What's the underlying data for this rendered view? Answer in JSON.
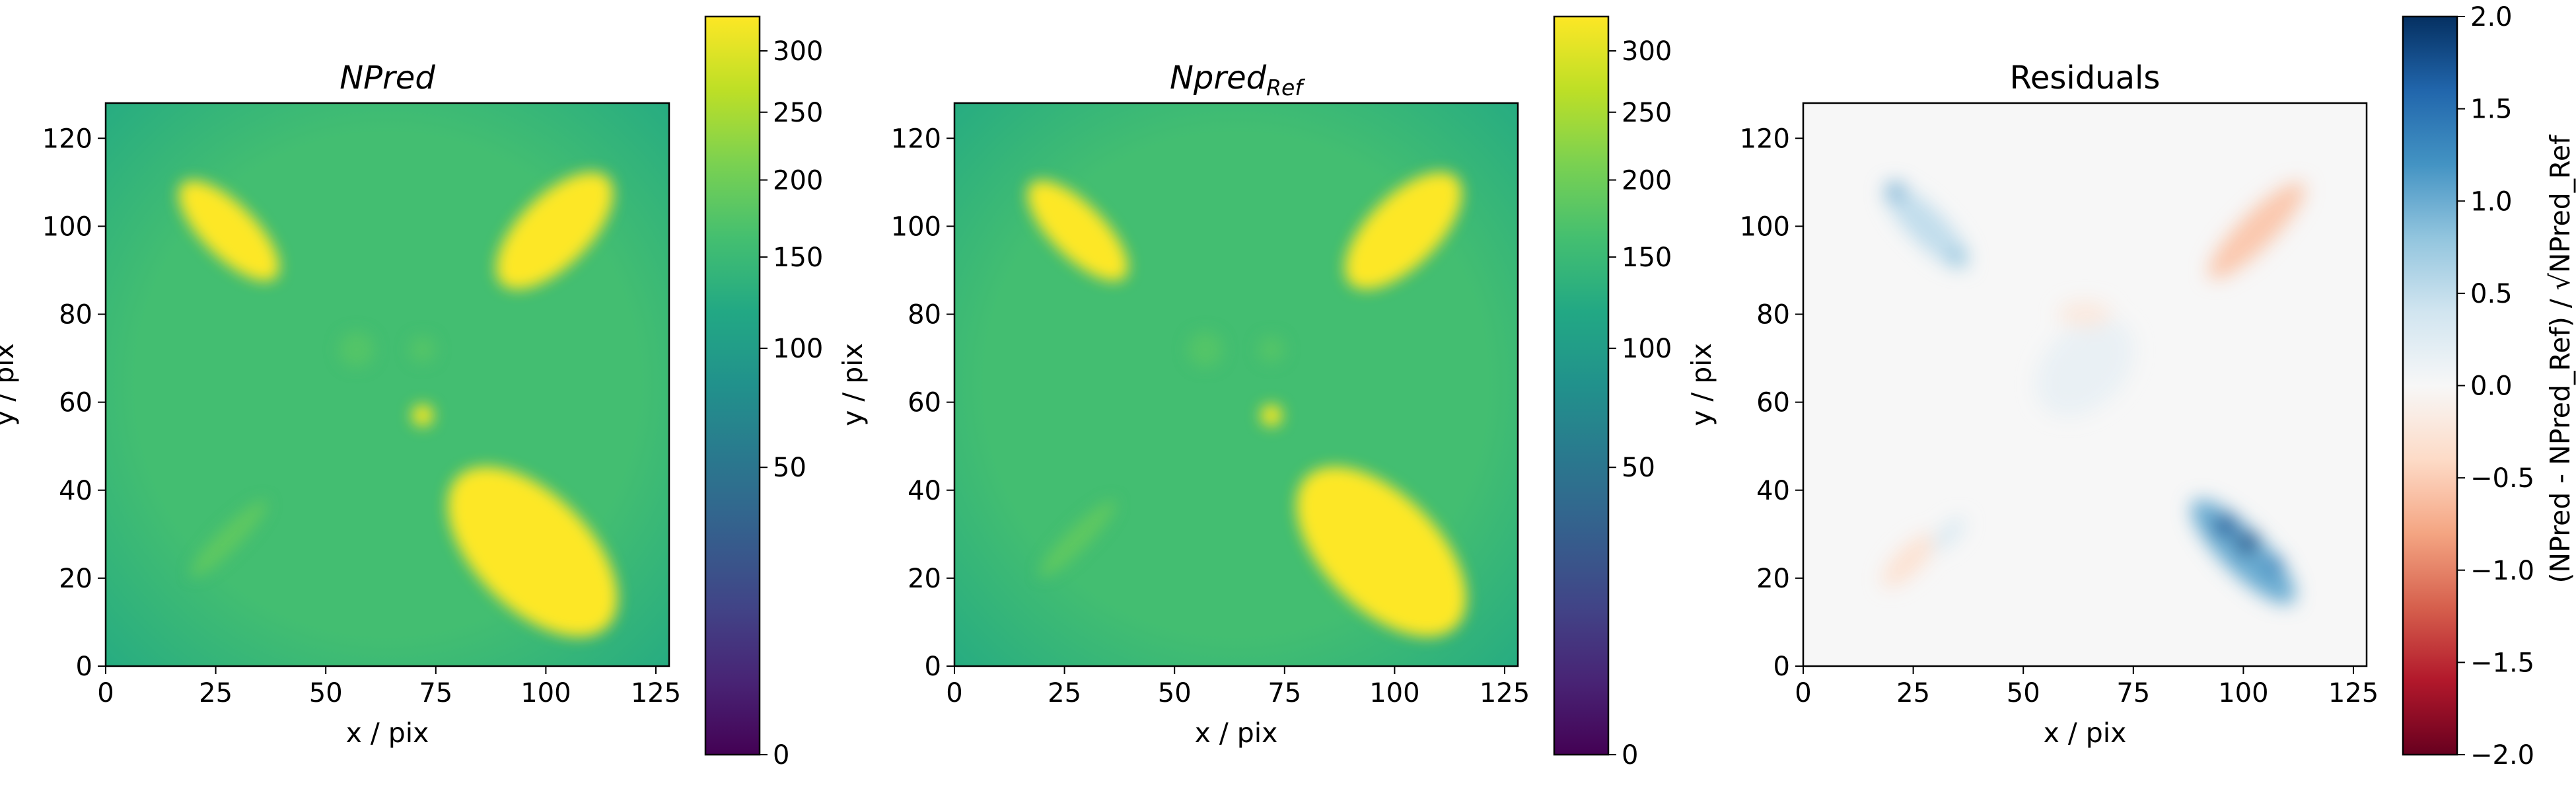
{
  "chart_data": [
    {
      "type": "heatmap",
      "title": "NPred",
      "xlabel": "x / pix",
      "ylabel": "y / pix",
      "xlim": [
        0,
        128
      ],
      "ylim": [
        0,
        128
      ],
      "xticks": [
        "0",
        "25",
        "50",
        "75",
        "100",
        "125"
      ],
      "yticks": [
        "0",
        "20",
        "40",
        "60",
        "80",
        "100",
        "120"
      ],
      "colormap": "viridis",
      "norm": "sqrt",
      "colorbar": {
        "min": 0,
        "max": 330,
        "ticks": [
          "0",
          "50",
          "100",
          "150",
          "200",
          "250",
          "300"
        ],
        "label": ""
      },
      "background_level": 160,
      "edge_level": 125,
      "features": [
        {
          "shape": "ellipse",
          "center": [
            28,
            99
          ],
          "axes": [
            15,
            6
          ],
          "angle_deg": -45,
          "level": 330
        },
        {
          "shape": "ellipse",
          "center": [
            102,
            99
          ],
          "axes": [
            17,
            8
          ],
          "angle_deg": 45,
          "level": 330
        },
        {
          "shape": "ellipse",
          "center": [
            97,
            26
          ],
          "axes": [
            24,
            13
          ],
          "angle_deg": -45,
          "level": 330
        },
        {
          "shape": "ellipse",
          "center": [
            28,
            29
          ],
          "axes": [
            12,
            2.5
          ],
          "angle_deg": 45,
          "level": 185
        },
        {
          "shape": "spot",
          "center": [
            72,
            57
          ],
          "radius": 2.5,
          "level": 320
        },
        {
          "shape": "spot",
          "center": [
            57,
            72
          ],
          "radius": 4,
          "level": 175
        },
        {
          "shape": "spot",
          "center": [
            72,
            72
          ],
          "radius": 3,
          "level": 175
        }
      ]
    },
    {
      "type": "heatmap",
      "title": "Npred",
      "title_subscript": "Ref",
      "xlabel": "x / pix",
      "ylabel": "y / pix",
      "xlim": [
        0,
        128
      ],
      "ylim": [
        0,
        128
      ],
      "xticks": [
        "0",
        "25",
        "50",
        "75",
        "100",
        "125"
      ],
      "yticks": [
        "0",
        "20",
        "40",
        "60",
        "80",
        "100",
        "120"
      ],
      "colormap": "viridis",
      "norm": "sqrt",
      "colorbar": {
        "min": 0,
        "max": 330,
        "ticks": [
          "0",
          "50",
          "100",
          "150",
          "200",
          "250",
          "300"
        ],
        "label": ""
      },
      "background_level": 160,
      "edge_level": 125,
      "features": [
        {
          "shape": "ellipse",
          "center": [
            28,
            99
          ],
          "axes": [
            15,
            6
          ],
          "angle_deg": -45,
          "level": 330
        },
        {
          "shape": "ellipse",
          "center": [
            102,
            99
          ],
          "axes": [
            17,
            8
          ],
          "angle_deg": 45,
          "level": 330
        },
        {
          "shape": "ellipse",
          "center": [
            97,
            26
          ],
          "axes": [
            24,
            13
          ],
          "angle_deg": -45,
          "level": 330
        },
        {
          "shape": "ellipse",
          "center": [
            28,
            29
          ],
          "axes": [
            12,
            2.5
          ],
          "angle_deg": 45,
          "level": 185
        },
        {
          "shape": "spot",
          "center": [
            72,
            57
          ],
          "radius": 2.5,
          "level": 320
        },
        {
          "shape": "spot",
          "center": [
            57,
            72
          ],
          "radius": 4,
          "level": 175
        },
        {
          "shape": "spot",
          "center": [
            72,
            72
          ],
          "radius": 3,
          "level": 175
        }
      ]
    },
    {
      "type": "heatmap",
      "title": "Residuals",
      "xlabel": "x / pix",
      "ylabel": "y / pix",
      "xlim": [
        0,
        128
      ],
      "ylim": [
        0,
        128
      ],
      "xticks": [
        "0",
        "25",
        "50",
        "75",
        "100",
        "125"
      ],
      "yticks": [
        "0",
        "20",
        "40",
        "60",
        "80",
        "100",
        "120"
      ],
      "colormap": "RdBu",
      "norm": "linear",
      "colorbar": {
        "min": -2.0,
        "max": 2.0,
        "ticks": [
          "2.0",
          "1.5",
          "1.0",
          "0.5",
          "0.0",
          "−0.5",
          "−1.0",
          "−1.5",
          "−2.0"
        ],
        "tick_values": [
          2.0,
          1.5,
          1.0,
          0.5,
          0.0,
          -0.5,
          -1.0,
          -1.5,
          -2.0
        ],
        "label": "(NPred - NPred_Ref) / √NPred_Ref"
      },
      "background_level": 0.0,
      "features": [
        {
          "shape": "ellipse",
          "center": [
            28,
            100
          ],
          "axes": [
            13,
            4
          ],
          "angle_deg": -45,
          "level": 0.5
        },
        {
          "shape": "spot",
          "center": [
            21,
            108
          ],
          "radius": 2,
          "level": 1.0
        },
        {
          "shape": "spot",
          "center": [
            35,
            93
          ],
          "radius": 2,
          "level": 0.8
        },
        {
          "shape": "ellipse",
          "center": [
            103,
            99
          ],
          "axes": [
            15,
            4
          ],
          "angle_deg": 45,
          "level": -0.55
        },
        {
          "shape": "ellipse",
          "center": [
            100,
            26
          ],
          "axes": [
            16,
            5
          ],
          "angle_deg": -45,
          "level": 1.0
        },
        {
          "shape": "spot",
          "center": [
            96,
            32
          ],
          "radius": 2.5,
          "level": 1.7
        },
        {
          "shape": "spot",
          "center": [
            101,
            28
          ],
          "radius": 2.5,
          "level": 1.8
        },
        {
          "shape": "spot",
          "center": [
            107,
            23
          ],
          "radius": 2,
          "level": 1.4
        },
        {
          "shape": "ellipse",
          "center": [
            24,
            24
          ],
          "axes": [
            8,
            3
          ],
          "angle_deg": 45,
          "level": -0.3
        },
        {
          "shape": "ellipse",
          "center": [
            33,
            30
          ],
          "axes": [
            5,
            2
          ],
          "angle_deg": 45,
          "level": 0.3
        },
        {
          "shape": "ellipse",
          "center": [
            64,
            68
          ],
          "axes": [
            13,
            9
          ],
          "angle_deg": 45,
          "level": 0.15
        },
        {
          "shape": "ellipse",
          "center": [
            64,
            80
          ],
          "axes": [
            6,
            3
          ],
          "angle_deg": 0,
          "level": -0.2
        }
      ]
    }
  ]
}
